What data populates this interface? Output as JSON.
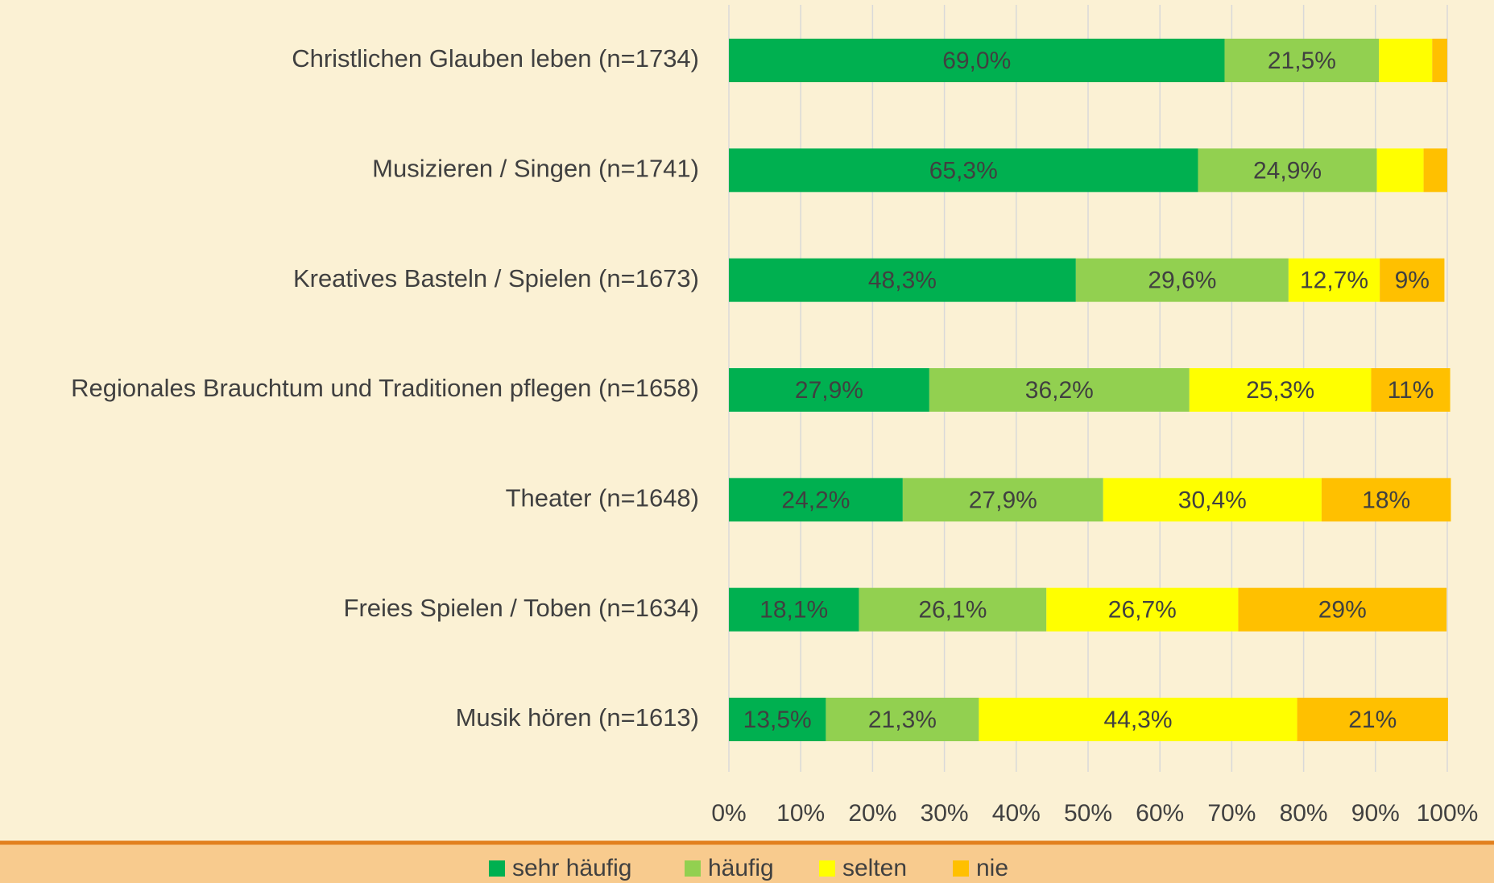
{
  "chart_data": {
    "type": "stacked_barh",
    "categories": [
      "Christlichen Glauben leben (n=1734)",
      "Musizieren / Singen (n=1741)",
      "Kreatives Basteln / Spielen (n=1673)",
      "Regionales Brauchtum und Traditionen pflegen (n=1658)",
      "Theater (n=1648)",
      "Freies Spielen / Toben (n=1634)",
      "Musik hören (n=1613)"
    ],
    "series": [
      {
        "name": "sehr häufig",
        "color": "#00b050",
        "values": [
          69.0,
          65.3,
          48.3,
          27.9,
          24.2,
          18.1,
          13.5
        ],
        "value_labels": [
          "69,0%",
          "65,3%",
          "48,3%",
          "27,9%",
          "24,2%",
          "18,1%",
          "13,5%"
        ]
      },
      {
        "name": "häufig",
        "color": "#92d050",
        "values": [
          21.5,
          24.9,
          29.6,
          36.2,
          27.9,
          26.1,
          21.3
        ],
        "value_labels": [
          "21,5%",
          "24,9%",
          "29,6%",
          "36,2%",
          "27,9%",
          "26,1%",
          "21,3%"
        ]
      },
      {
        "name": "selten",
        "color": "#ffff00",
        "values": [
          7.4,
          6.5,
          12.7,
          25.3,
          30.4,
          26.7,
          44.3
        ],
        "value_labels": [
          null,
          null,
          "12,7%",
          "25,3%",
          "30,4%",
          "26,7%",
          "44,3%"
        ]
      },
      {
        "name": "nie",
        "color": "#ffc000",
        "values": [
          2.1,
          3.3,
          9,
          11,
          18,
          29,
          21
        ],
        "value_labels": [
          null,
          null,
          "9%",
          "11%",
          "18%",
          "29%",
          "21%"
        ]
      }
    ],
    "xlim": [
      0,
      100
    ],
    "xticks": [
      {
        "value": 0,
        "label": "0%"
      },
      {
        "value": 10,
        "label": "10%"
      },
      {
        "value": 20,
        "label": "20%"
      },
      {
        "value": 30,
        "label": "30%"
      },
      {
        "value": 40,
        "label": "40%"
      },
      {
        "value": 50,
        "label": "50%"
      },
      {
        "value": 60,
        "label": "60%"
      },
      {
        "value": 70,
        "label": "70%"
      },
      {
        "value": 80,
        "label": "80%"
      },
      {
        "value": 90,
        "label": "90%"
      },
      {
        "value": 100,
        "label": "100%"
      }
    ],
    "grid": true,
    "legend": "bottom"
  }
}
